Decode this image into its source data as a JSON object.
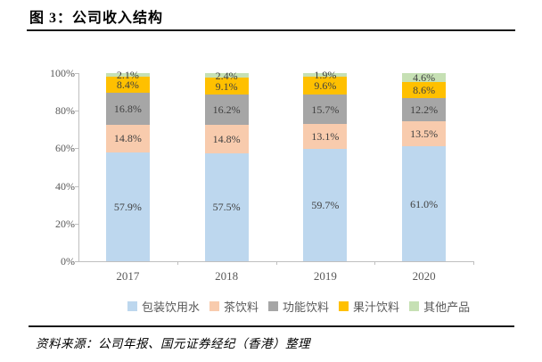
{
  "header": {
    "title": "图 3：公司收入结构"
  },
  "footer": {
    "source_note": "资料来源：公司年报、国元证券经纪（香港）整理"
  },
  "colors": {
    "rule": "#1a1a1a",
    "axis_line": "#bfbfbf",
    "axis_text": "#595959",
    "data_label_text": "#404040"
  },
  "chart_data": {
    "type": "bar",
    "stacked": true,
    "grid": false,
    "legend_position": "bottom",
    "categories": [
      "2017",
      "2018",
      "2019",
      "2020"
    ],
    "series": [
      {
        "name": "包装饮用水",
        "color": "#bdd7ee",
        "values": [
          57.9,
          57.5,
          59.7,
          61.0
        ]
      },
      {
        "name": "茶饮料",
        "color": "#f8cbad",
        "values": [
          14.8,
          14.8,
          13.1,
          13.5
        ]
      },
      {
        "name": "功能饮料",
        "color": "#a6a6a6",
        "values": [
          16.8,
          16.2,
          15.7,
          12.2
        ]
      },
      {
        "name": "果汁饮料",
        "color": "#ffc000",
        "values": [
          8.4,
          9.1,
          9.6,
          8.6
        ]
      },
      {
        "name": "其他产品",
        "color": "#c6e0b4",
        "values": [
          2.1,
          2.4,
          1.9,
          4.6
        ]
      }
    ],
    "data_labels": [
      [
        "57.9%",
        "57.5%",
        "59.7%",
        "61.0%"
      ],
      [
        "14.8%",
        "14.8%",
        "13.1%",
        "13.5%"
      ],
      [
        "16.8%",
        "16.2%",
        "15.7%",
        "12.2%"
      ],
      [
        "8.4%",
        "9.1%",
        "9.6%",
        "8.6%"
      ],
      [
        "2.1%",
        "2.4%",
        "1.9%",
        "4.6%"
      ]
    ],
    "y_axis": {
      "min": 0,
      "max": 100,
      "tick_step": 20,
      "tick_labels": [
        "0%",
        "20%",
        "40%",
        "60%",
        "80%",
        "100%"
      ]
    }
  }
}
